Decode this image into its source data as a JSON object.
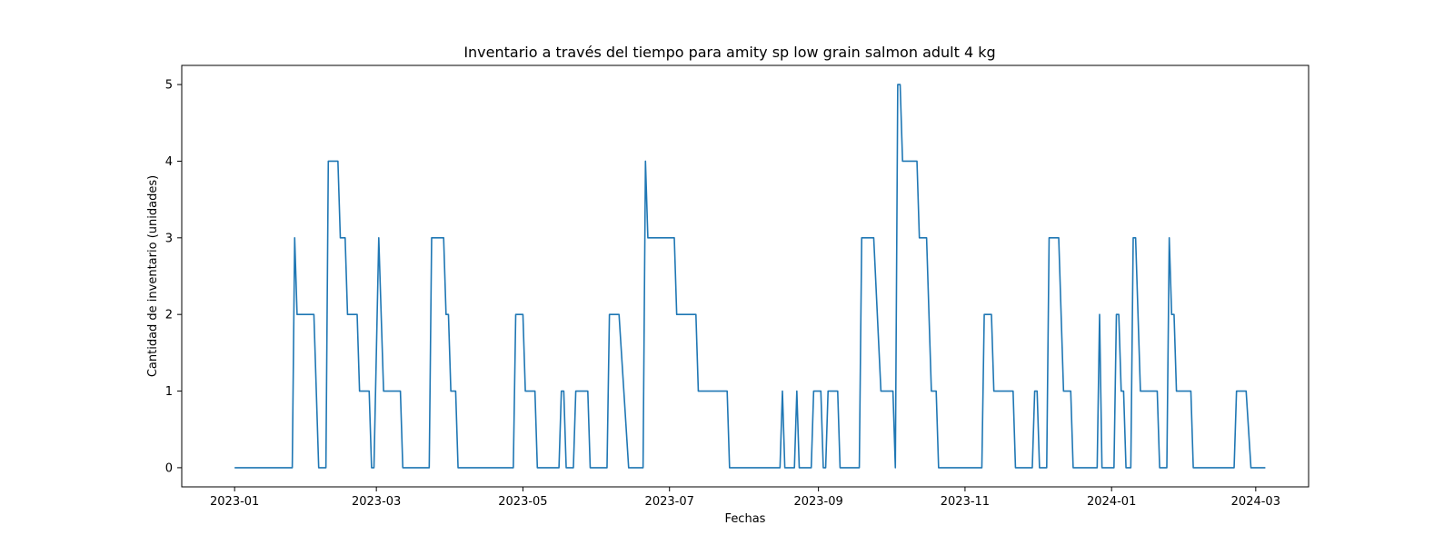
{
  "chart_data": {
    "type": "line",
    "title": "Inventario a través del tiempo para amity sp low grain salmon adult 4 kg",
    "xlabel": "Fechas",
    "ylabel": "Cantidad de inventario (unidades)",
    "x_axis_type": "date",
    "xlim": [
      "2022-12-10",
      "2024-03-23"
    ],
    "ylim": [
      -0.25,
      5.25
    ],
    "x_ticks": [
      {
        "date": "2023-01-01",
        "label": "2023-01"
      },
      {
        "date": "2023-03-01",
        "label": "2023-03"
      },
      {
        "date": "2023-05-01",
        "label": "2023-05"
      },
      {
        "date": "2023-07-01",
        "label": "2023-07"
      },
      {
        "date": "2023-09-01",
        "label": "2023-09"
      },
      {
        "date": "2023-11-01",
        "label": "2023-11"
      },
      {
        "date": "2024-01-01",
        "label": "2024-01"
      },
      {
        "date": "2024-03-01",
        "label": "2024-03"
      }
    ],
    "y_ticks": [
      0,
      1,
      2,
      3,
      4,
      5
    ],
    "grid": false,
    "line_color": "#1f77b4",
    "series": [
      {
        "name": "",
        "points": [
          [
            "2023-01-01",
            0
          ],
          [
            "2023-01-25",
            0
          ],
          [
            "2023-01-26",
            3
          ],
          [
            "2023-01-27",
            2
          ],
          [
            "2023-02-03",
            2
          ],
          [
            "2023-02-05",
            0
          ],
          [
            "2023-02-08",
            0
          ],
          [
            "2023-02-09",
            4
          ],
          [
            "2023-02-13",
            4
          ],
          [
            "2023-02-14",
            3
          ],
          [
            "2023-02-16",
            3
          ],
          [
            "2023-02-17",
            2
          ],
          [
            "2023-02-21",
            2
          ],
          [
            "2023-02-22",
            1
          ],
          [
            "2023-02-26",
            1
          ],
          [
            "2023-02-27",
            0
          ],
          [
            "2023-02-28",
            0
          ],
          [
            "2023-03-02",
            3
          ],
          [
            "2023-03-04",
            1
          ],
          [
            "2023-03-11",
            1
          ],
          [
            "2023-03-12",
            0
          ],
          [
            "2023-03-23",
            0
          ],
          [
            "2023-03-24",
            3
          ],
          [
            "2023-03-29",
            3
          ],
          [
            "2023-03-30",
            2
          ],
          [
            "2023-03-31",
            2
          ],
          [
            "2023-04-01",
            1
          ],
          [
            "2023-04-03",
            1
          ],
          [
            "2023-04-04",
            0
          ],
          [
            "2023-04-27",
            0
          ],
          [
            "2023-04-28",
            2
          ],
          [
            "2023-05-01",
            2
          ],
          [
            "2023-05-02",
            1
          ],
          [
            "2023-05-06",
            1
          ],
          [
            "2023-05-07",
            0
          ],
          [
            "2023-05-16",
            0
          ],
          [
            "2023-05-17",
            1
          ],
          [
            "2023-05-18",
            1
          ],
          [
            "2023-05-19",
            0
          ],
          [
            "2023-05-22",
            0
          ],
          [
            "2023-05-23",
            1
          ],
          [
            "2023-05-28",
            1
          ],
          [
            "2023-05-29",
            0
          ],
          [
            "2023-06-05",
            0
          ],
          [
            "2023-06-06",
            2
          ],
          [
            "2023-06-10",
            2
          ],
          [
            "2023-06-14",
            0
          ],
          [
            "2023-06-20",
            0
          ],
          [
            "2023-06-21",
            4
          ],
          [
            "2023-06-22",
            3
          ],
          [
            "2023-07-03",
            3
          ],
          [
            "2023-07-04",
            2
          ],
          [
            "2023-07-12",
            2
          ],
          [
            "2023-07-13",
            1
          ],
          [
            "2023-07-25",
            1
          ],
          [
            "2023-07-26",
            0
          ],
          [
            "2023-08-16",
            0
          ],
          [
            "2023-08-17",
            1
          ],
          [
            "2023-08-18",
            0
          ],
          [
            "2023-08-22",
            0
          ],
          [
            "2023-08-23",
            1
          ],
          [
            "2023-08-24",
            0
          ],
          [
            "2023-08-29",
            0
          ],
          [
            "2023-08-30",
            1
          ],
          [
            "2023-09-02",
            1
          ],
          [
            "2023-09-03",
            0
          ],
          [
            "2023-09-04",
            0
          ],
          [
            "2023-09-05",
            1
          ],
          [
            "2023-09-09",
            1
          ],
          [
            "2023-09-10",
            0
          ],
          [
            "2023-09-18",
            0
          ],
          [
            "2023-09-19",
            3
          ],
          [
            "2023-09-24",
            3
          ],
          [
            "2023-09-27",
            1
          ],
          [
            "2023-10-02",
            1
          ],
          [
            "2023-10-03",
            0
          ],
          [
            "2023-10-04",
            5
          ],
          [
            "2023-10-05",
            5
          ],
          [
            "2023-10-06",
            4
          ],
          [
            "2023-10-12",
            4
          ],
          [
            "2023-10-13",
            3
          ],
          [
            "2023-10-16",
            3
          ],
          [
            "2023-10-18",
            1
          ],
          [
            "2023-10-20",
            1
          ],
          [
            "2023-10-21",
            0
          ],
          [
            "2023-11-08",
            0
          ],
          [
            "2023-11-09",
            2
          ],
          [
            "2023-11-12",
            2
          ],
          [
            "2023-11-13",
            1
          ],
          [
            "2023-11-21",
            1
          ],
          [
            "2023-11-22",
            0
          ],
          [
            "2023-11-29",
            0
          ],
          [
            "2023-11-30",
            1
          ],
          [
            "2023-12-01",
            1
          ],
          [
            "2023-12-02",
            0
          ],
          [
            "2023-12-05",
            0
          ],
          [
            "2023-12-06",
            3
          ],
          [
            "2023-12-10",
            3
          ],
          [
            "2023-12-12",
            1
          ],
          [
            "2023-12-15",
            1
          ],
          [
            "2023-12-16",
            0
          ],
          [
            "2023-12-26",
            0
          ],
          [
            "2023-12-27",
            2
          ],
          [
            "2023-12-28",
            0
          ],
          [
            "2024-01-02",
            0
          ],
          [
            "2024-01-03",
            2
          ],
          [
            "2024-01-04",
            2
          ],
          [
            "2024-01-05",
            1
          ],
          [
            "2024-01-06",
            1
          ],
          [
            "2024-01-07",
            0
          ],
          [
            "2024-01-09",
            0
          ],
          [
            "2024-01-10",
            3
          ],
          [
            "2024-01-11",
            3
          ],
          [
            "2024-01-13",
            1
          ],
          [
            "2024-01-20",
            1
          ],
          [
            "2024-01-21",
            0
          ],
          [
            "2024-01-24",
            0
          ],
          [
            "2024-01-25",
            3
          ],
          [
            "2024-01-26",
            2
          ],
          [
            "2024-01-27",
            2
          ],
          [
            "2024-01-28",
            1
          ],
          [
            "2024-02-03",
            1
          ],
          [
            "2024-02-04",
            0
          ],
          [
            "2024-02-21",
            0
          ],
          [
            "2024-02-22",
            1
          ],
          [
            "2024-02-26",
            1
          ],
          [
            "2024-02-28",
            0
          ],
          [
            "2024-03-05",
            0
          ]
        ]
      }
    ]
  }
}
